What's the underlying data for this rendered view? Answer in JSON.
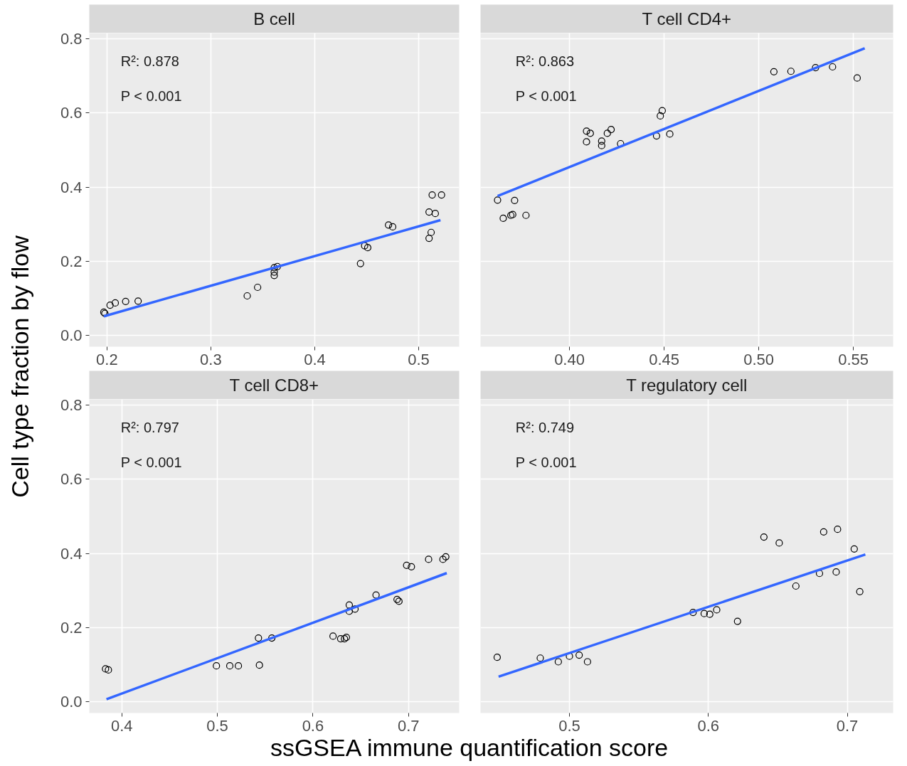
{
  "chart_data": [
    {
      "type": "scatter",
      "title": "B cell",
      "ylabel": "Cell type fraction by flow",
      "annotations": [
        "R²: 0.878",
        "P < 0.001"
      ],
      "xlim": [
        0.183,
        0.539
      ],
      "ylim": [
        -0.03,
        0.815
      ],
      "xticks": [
        0.2,
        0.3,
        0.4,
        0.5
      ],
      "yticks": [
        {
          "value": 0,
          "label": "0.0"
        },
        0.2,
        0.4,
        0.6,
        0.8
      ],
      "grid": true,
      "series": [
        {
          "marker": "circle",
          "color": "#000000",
          "x": [
            0.197,
            0.198,
            0.203,
            0.208,
            0.218,
            0.23,
            0.335,
            0.345,
            0.361,
            0.364,
            0.361,
            0.361,
            0.444,
            0.448,
            0.451,
            0.471,
            0.475,
            0.51,
            0.516,
            0.513,
            0.522,
            0.512,
            0.51
          ],
          "values": [
            0.063,
            0.06,
            0.082,
            0.088,
            0.092,
            0.093,
            0.107,
            0.13,
            0.183,
            0.186,
            0.171,
            0.162,
            0.194,
            0.242,
            0.237,
            0.298,
            0.293,
            0.333,
            0.329,
            0.379,
            0.379,
            0.278,
            0.262
          ]
        },
        {
          "type": "line",
          "color": "#3366ff",
          "x": [
            0.197,
            0.521
          ],
          "values": [
            0.052,
            0.311
          ]
        }
      ]
    },
    {
      "type": "scatter",
      "title": "T cell CD4+",
      "annotations": [
        "R²: 0.863",
        "P < 0.001"
      ],
      "xlim": [
        0.353,
        0.571
      ],
      "ylim": [
        -0.03,
        0.815
      ],
      "xticks": [
        {
          "value": 0.4,
          "label": "0.40"
        },
        {
          "value": 0.45,
          "label": "0.45"
        },
        {
          "value": 0.5,
          "label": "0.50"
        },
        {
          "value": 0.55,
          "label": "0.55"
        }
      ],
      "yticks": [
        0,
        0.2,
        0.4,
        0.6,
        0.8
      ],
      "tick_labels": "x",
      "grid": true,
      "series": [
        {
          "marker": "circle",
          "color": "#000000",
          "x": [
            0.362,
            0.371,
            0.365,
            0.369,
            0.37,
            0.377,
            0.409,
            0.411,
            0.409,
            0.417,
            0.417,
            0.42,
            0.422,
            0.427,
            0.446,
            0.453,
            0.448,
            0.449,
            0.508,
            0.517,
            0.53,
            0.539,
            0.552
          ],
          "values": [
            0.365,
            0.364,
            0.316,
            0.324,
            0.326,
            0.324,
            0.551,
            0.545,
            0.522,
            0.524,
            0.512,
            0.545,
            0.555,
            0.517,
            0.538,
            0.543,
            0.592,
            0.606,
            0.711,
            0.712,
            0.722,
            0.724,
            0.694
          ]
        },
        {
          "type": "line",
          "color": "#3366ff",
          "x": [
            0.362,
            0.556
          ],
          "values": [
            0.376,
            0.774
          ]
        }
      ]
    },
    {
      "type": "scatter",
      "title": "T cell CD8+",
      "xlabel": "ssGSEA immune quantification score",
      "annotations": [
        "R²: 0.797",
        "P < 0.001"
      ],
      "xlim": [
        0.366,
        0.753
      ],
      "ylim": [
        -0.03,
        0.815
      ],
      "xticks": [
        0.4,
        0.5,
        0.6,
        0.7
      ],
      "yticks": [
        {
          "value": 0,
          "label": "0.0"
        },
        0.2,
        0.4,
        0.6,
        0.8
      ],
      "grid": true,
      "series": [
        {
          "marker": "circle",
          "color": "#000000",
          "x": [
            0.383,
            0.386,
            0.499,
            0.513,
            0.522,
            0.544,
            0.543,
            0.557,
            0.621,
            0.629,
            0.633,
            0.635,
            0.638,
            0.638,
            0.644,
            0.666,
            0.688,
            0.69,
            0.698,
            0.703,
            0.721,
            0.736,
            0.739
          ],
          "values": [
            0.089,
            0.086,
            0.097,
            0.097,
            0.097,
            0.099,
            0.172,
            0.172,
            0.177,
            0.17,
            0.17,
            0.174,
            0.261,
            0.244,
            0.25,
            0.288,
            0.276,
            0.271,
            0.368,
            0.364,
            0.384,
            0.384,
            0.391
          ]
        },
        {
          "type": "line",
          "color": "#3366ff",
          "x": [
            0.384,
            0.74
          ],
          "values": [
            0.007,
            0.347
          ]
        }
      ]
    },
    {
      "type": "scatter",
      "title": "T regulatory cell",
      "annotations": [
        "R²: 0.749",
        "P < 0.001"
      ],
      "xlim": [
        0.436,
        0.733
      ],
      "ylim": [
        -0.03,
        0.815
      ],
      "xticks": [
        0.5,
        0.6,
        0.7
      ],
      "yticks": [
        0,
        0.2,
        0.4,
        0.6,
        0.8
      ],
      "tick_labels": "x",
      "grid": true,
      "series": [
        {
          "marker": "circle",
          "color": "#000000",
          "x": [
            0.448,
            0.479,
            0.492,
            0.5,
            0.507,
            0.513,
            0.589,
            0.597,
            0.601,
            0.606,
            0.621,
            0.64,
            0.651,
            0.663,
            0.68,
            0.683,
            0.693,
            0.692,
            0.705,
            0.709
          ],
          "values": [
            0.12,
            0.118,
            0.108,
            0.123,
            0.126,
            0.108,
            0.241,
            0.238,
            0.236,
            0.248,
            0.217,
            0.444,
            0.428,
            0.312,
            0.346,
            0.458,
            0.465,
            0.35,
            0.412,
            0.297
          ]
        },
        {
          "type": "line",
          "color": "#3366ff",
          "x": [
            0.449,
            0.713
          ],
          "values": [
            0.068,
            0.397
          ]
        }
      ]
    }
  ]
}
